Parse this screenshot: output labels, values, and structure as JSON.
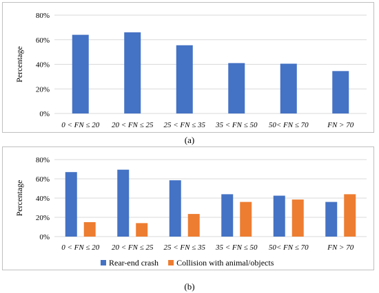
{
  "chart_data": [
    {
      "panel": "a",
      "type": "bar",
      "categories": [
        "0 < FN ≤ 20",
        "20 < FN ≤ 25",
        "25 < FN ≤ 35",
        "35 < FN ≤ 50",
        "50< FN ≤ 70",
        "FN > 70"
      ],
      "series": [
        {
          "values": [
            64,
            66,
            55.5,
            41,
            40.5,
            34.5
          ],
          "color": "#4472c4"
        }
      ],
      "ylabel": "Percentage",
      "ylim": [
        0,
        80
      ],
      "yticks": [
        "0%",
        "20%",
        "40%",
        "60%",
        "80%"
      ],
      "grid": true,
      "caption": "(a)"
    },
    {
      "panel": "b",
      "type": "bar",
      "categories": [
        "0 < FN ≤ 20",
        "20 < FN ≤ 25",
        "25 < FN ≤ 35",
        "35 < FN ≤ 50",
        "50< FN ≤ 70",
        "FN > 70"
      ],
      "series": [
        {
          "name": "Rear-end crash",
          "values": [
            67,
            69.5,
            58.5,
            44,
            42.5,
            36
          ],
          "color": "#4472c4"
        },
        {
          "name": "Collision with animal/objects",
          "values": [
            15,
            14,
            23.5,
            36,
            38.5,
            44
          ],
          "color": "#ed7d31"
        }
      ],
      "ylabel": "Percentage",
      "ylim": [
        0,
        80
      ],
      "yticks": [
        "0%",
        "20%",
        "40%",
        "60%",
        "80%"
      ],
      "grid": true,
      "legend": "bottom",
      "caption": "(b)"
    }
  ]
}
